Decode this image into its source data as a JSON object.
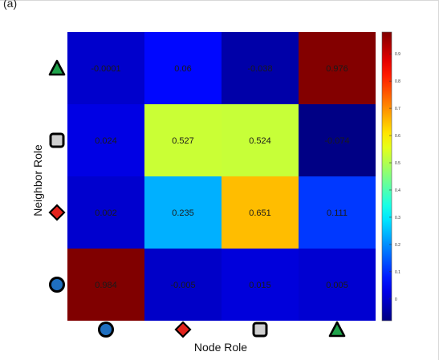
{
  "panel_label": "(a)",
  "chart_data": {
    "type": "heatmap",
    "xlabel": "Node Role",
    "ylabel": "Neighbor Role",
    "x_categories": [
      "circle",
      "diamond",
      "square",
      "triangle"
    ],
    "y_categories_bottom_to_top": [
      "circle",
      "diamond",
      "square",
      "triangle"
    ],
    "values": [
      [
        0.984,
        -0.005,
        0.015,
        0.005
      ],
      [
        0.002,
        0.235,
        0.651,
        0.111
      ],
      [
        0.024,
        0.527,
        0.524,
        -0.074
      ],
      [
        -0.0001,
        0.06,
        -0.038,
        0.976
      ]
    ],
    "value_labels": [
      [
        "0.984",
        "-0.005",
        "0.015",
        "0.005"
      ],
      [
        "0.002",
        "0.235",
        "0.651",
        "0.111"
      ],
      [
        "0.024",
        "0.527",
        "0.524",
        "-0.074"
      ],
      [
        "-0.0001",
        "0.06",
        "-0.038",
        "0.976"
      ]
    ],
    "colorbar": {
      "colormap": "jet",
      "range": [
        -0.08,
        0.98
      ],
      "tick_values": [
        0,
        0.1,
        0.2,
        0.3,
        0.4,
        0.5,
        0.6,
        0.7,
        0.8,
        0.9
      ],
      "tick_labels": [
        "0",
        "0.1",
        "0.2",
        "0.3",
        "0.4",
        "0.5",
        "0.6",
        "0.7",
        "0.8",
        "0.9"
      ]
    },
    "marker_colors": {
      "circle": "#1f6fc0",
      "diamond": "#e3231d",
      "square": "#cfcfcf",
      "triangle": "#1fa24a"
    }
  }
}
